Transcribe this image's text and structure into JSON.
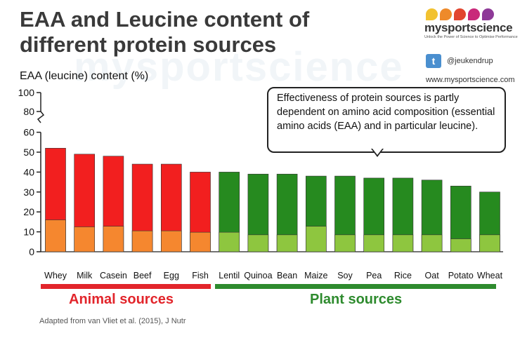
{
  "title_line1": "EAA and Leucine content of",
  "title_line2": "different protein sources",
  "brand": {
    "name": "mysportscience",
    "tagline": "Unlock the Power of Science to Optimise Performance",
    "dot_colors": [
      "#f2c230",
      "#ee8a2a",
      "#e2452f",
      "#c9297a",
      "#8e3a98"
    ],
    "twitter_handle": "@jeukendrup",
    "website": "www.mysportscience.com",
    "watermark": "mysportscience"
  },
  "callout": "Effectiveness of protein sources is partly dependent on amino acid composition (essential amino acids (EAA) and in particular leucine).",
  "source_note": "Adapted from van Vliet et al. (2015), J Nutr",
  "groups": {
    "animal": {
      "label": "Animal sources",
      "color": "#e2252b"
    },
    "plant": {
      "label": "Plant sources",
      "color": "#2e8b2e"
    }
  },
  "chart_data": {
    "type": "bar",
    "ylabel": "EAA (leucine) content (%)",
    "yticks": [
      0,
      10,
      20,
      30,
      40,
      50,
      60,
      80,
      100
    ],
    "axis_break": "between 60 and 80",
    "categories": [
      "Whey",
      "Milk",
      "Casein",
      "Beef",
      "Egg",
      "Fish",
      "Lentil",
      "Quinoa",
      "Bean",
      "Maize",
      "Soy",
      "Pea",
      "Rice",
      "Oat",
      "Potato",
      "Wheat"
    ],
    "group_of_category": [
      "animal",
      "animal",
      "animal",
      "animal",
      "animal",
      "animal",
      "plant",
      "plant",
      "plant",
      "plant",
      "plant",
      "plant",
      "plant",
      "plant",
      "plant",
      "plant"
    ],
    "series": [
      {
        "values": [
          52,
          49,
          48,
          44,
          44,
          40,
          40,
          39,
          39,
          38,
          38,
          37,
          37,
          36,
          33,
          30
        ]
      },
      {
        "values": [
          16,
          12.5,
          12.8,
          10.5,
          10.5,
          9.8,
          9.8,
          8.5,
          8.5,
          12.8,
          8.5,
          8.5,
          8.5,
          8.5,
          6.5,
          8.5
        ]
      }
    ],
    "colors": {
      "animal_eaa": "#f21f1f",
      "animal_leucine": "#f5872f",
      "plant_eaa": "#268a1f",
      "plant_leucine": "#8ec63f"
    }
  }
}
